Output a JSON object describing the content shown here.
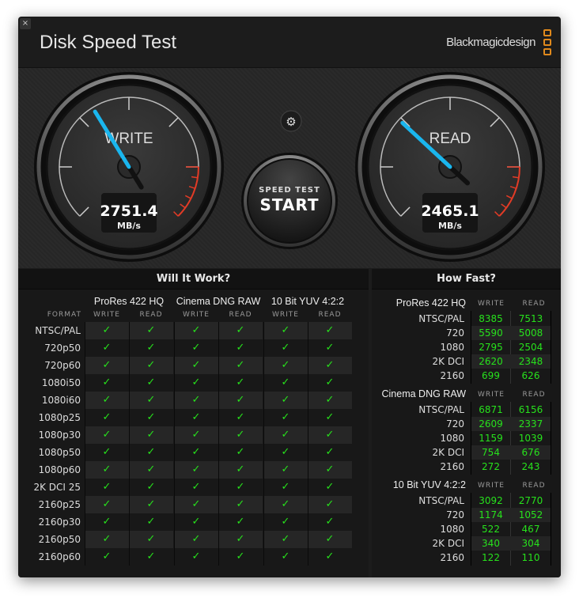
{
  "window": {
    "title": "Disk Speed Test",
    "brand": "Blackmagicdesign",
    "close": "×"
  },
  "gauges": {
    "write": {
      "label": "WRITE",
      "value": "2751.4",
      "unit": "MB/s",
      "needle_fraction": 0.46
    },
    "read": {
      "label": "READ",
      "value": "2465.1",
      "unit": "MB/s",
      "needle_fraction": 0.39
    }
  },
  "start_button": {
    "line1": "SPEED TEST",
    "line2": "START"
  },
  "settings_icon": "gear-icon",
  "will_it_work": {
    "title": "Will It Work?",
    "format_header": "FORMAT",
    "groups": [
      "ProRes 422 HQ",
      "Cinema DNG RAW",
      "10 Bit YUV 4:2:2"
    ],
    "subheaders": [
      "WRITE",
      "READ"
    ],
    "check": "✓",
    "rows": [
      "NTSC/PAL",
      "720p50",
      "720p60",
      "1080i50",
      "1080i60",
      "1080p25",
      "1080p30",
      "1080p50",
      "1080p60",
      "2K DCI 25",
      "2160p25",
      "2160p30",
      "2160p50",
      "2160p60"
    ]
  },
  "how_fast": {
    "title": "How Fast?",
    "subheaders": [
      "WRITE",
      "READ"
    ],
    "groups": [
      {
        "name": "ProRes 422 HQ",
        "rows": [
          [
            "NTSC/PAL",
            "8385",
            "7513"
          ],
          [
            "720",
            "5590",
            "5008"
          ],
          [
            "1080",
            "2795",
            "2504"
          ],
          [
            "2K DCI",
            "2620",
            "2348"
          ],
          [
            "2160",
            "699",
            "626"
          ]
        ]
      },
      {
        "name": "Cinema DNG RAW",
        "rows": [
          [
            "NTSC/PAL",
            "6871",
            "6156"
          ],
          [
            "720",
            "2609",
            "2337"
          ],
          [
            "1080",
            "1159",
            "1039"
          ],
          [
            "2K DCI",
            "754",
            "676"
          ],
          [
            "2160",
            "272",
            "243"
          ]
        ]
      },
      {
        "name": "10 Bit YUV 4:2:2",
        "rows": [
          [
            "NTSC/PAL",
            "3092",
            "2770"
          ],
          [
            "720",
            "1174",
            "1052"
          ],
          [
            "1080",
            "522",
            "467"
          ],
          [
            "2K DCI",
            "340",
            "304"
          ],
          [
            "2160",
            "122",
            "110"
          ]
        ]
      }
    ]
  },
  "colors": {
    "accent": "#1ab6ee",
    "ok": "#27e21c",
    "danger": "#e23b26",
    "brand": "#e0891c"
  }
}
